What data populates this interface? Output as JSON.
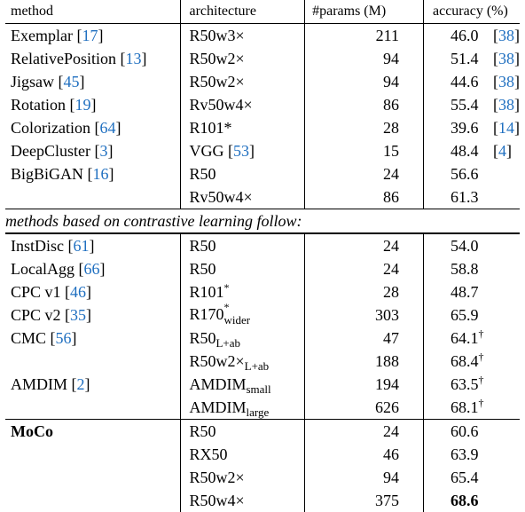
{
  "headers": {
    "method": "method",
    "architecture": "architecture",
    "params": "#params (M)",
    "accuracy": "accuracy (%)"
  },
  "section_note": "methods based on contrastive learning follow:",
  "group1": [
    {
      "method": "Exemplar",
      "mref": "17",
      "arch": "R50w3×",
      "arch_sup": "",
      "arch_sub": "",
      "params": "211",
      "acc": "46.0",
      "acc_sup": "",
      "src": "38"
    },
    {
      "method": "RelativePosition",
      "mref": "13",
      "arch": "R50w2×",
      "arch_sup": "",
      "arch_sub": "",
      "params": "94",
      "acc": "51.4",
      "acc_sup": "",
      "src": "38"
    },
    {
      "method": "Jigsaw",
      "mref": "45",
      "arch": "R50w2×",
      "arch_sup": "",
      "arch_sub": "",
      "params": "94",
      "acc": "44.6",
      "acc_sup": "",
      "src": "38"
    },
    {
      "method": "Rotation",
      "mref": "19",
      "arch": "Rv50w4×",
      "arch_sup": "",
      "arch_sub": "",
      "params": "86",
      "acc": "55.4",
      "acc_sup": "",
      "src": "38"
    },
    {
      "method": "Colorization",
      "mref": "64",
      "arch": "R101*",
      "arch_sup": "",
      "arch_sub": "",
      "params": "28",
      "acc": "39.6",
      "acc_sup": "",
      "src": "14"
    },
    {
      "method": "DeepCluster",
      "mref": "3",
      "arch": "VGG",
      "arch_ref": "53",
      "arch_sup": "",
      "arch_sub": "",
      "params": "15",
      "acc": "48.4",
      "acc_sup": "",
      "src": "4"
    },
    {
      "method": "BigBiGAN",
      "mref": "16",
      "arch": "R50",
      "arch_sup": "",
      "arch_sub": "",
      "params": "24",
      "acc": "56.6",
      "acc_sup": "",
      "src": ""
    },
    {
      "method": "",
      "mref": "",
      "arch": "Rv50w4×",
      "arch_sup": "",
      "arch_sub": "",
      "params": "86",
      "acc": "61.3",
      "acc_sup": "",
      "src": ""
    }
  ],
  "group2": [
    {
      "method": "InstDisc",
      "mref": "61",
      "arch": "R50",
      "arch_sup": "",
      "arch_sub": "",
      "params": "24",
      "acc": "54.0",
      "acc_sup": "",
      "top": "thick"
    },
    {
      "method": "LocalAgg",
      "mref": "66",
      "arch": "R50",
      "arch_sup": "",
      "arch_sub": "",
      "params": "24",
      "acc": "58.8",
      "acc_sup": ""
    },
    {
      "method": "CPC v1",
      "mref": "46",
      "arch": "R101",
      "arch_sup": "*",
      "arch_sub": "",
      "params": "28",
      "acc": "48.7",
      "acc_sup": ""
    },
    {
      "method": "CPC v2",
      "mref": "35",
      "arch": "R170",
      "arch_sup": "*",
      "arch_sub": "wider",
      "params": "303",
      "acc": "65.9",
      "acc_sup": ""
    },
    {
      "method": "CMC",
      "mref": "56",
      "arch": "R50",
      "arch_sup": "",
      "arch_sub": "L+ab",
      "params": "47",
      "acc": "64.1",
      "acc_sup": "†"
    },
    {
      "method": "",
      "mref": "",
      "arch": "R50w2×",
      "arch_sup": "",
      "arch_sub": "L+ab",
      "params": "188",
      "acc": "68.4",
      "acc_sup": "†"
    },
    {
      "method": "AMDIM",
      "mref": "2",
      "arch": "AMDIM",
      "arch_sup": "",
      "arch_sub": "small",
      "params": "194",
      "acc": "63.5",
      "acc_sup": "†"
    },
    {
      "method": "",
      "mref": "",
      "arch": "AMDIM",
      "arch_sup": "",
      "arch_sub": "large",
      "params": "626",
      "acc": "68.1",
      "acc_sup": "†"
    }
  ],
  "group3": [
    {
      "method": "MoCo",
      "arch": "R50",
      "params": "24",
      "acc": "60.6",
      "bold": false
    },
    {
      "method": "",
      "arch": "RX50",
      "params": "46",
      "acc": "63.9",
      "bold": false
    },
    {
      "method": "",
      "arch": "R50w2×",
      "params": "94",
      "acc": "65.4",
      "bold": false
    },
    {
      "method": "",
      "arch": "R50w4×",
      "params": "375",
      "acc": "68.6",
      "bold": true
    }
  ]
}
